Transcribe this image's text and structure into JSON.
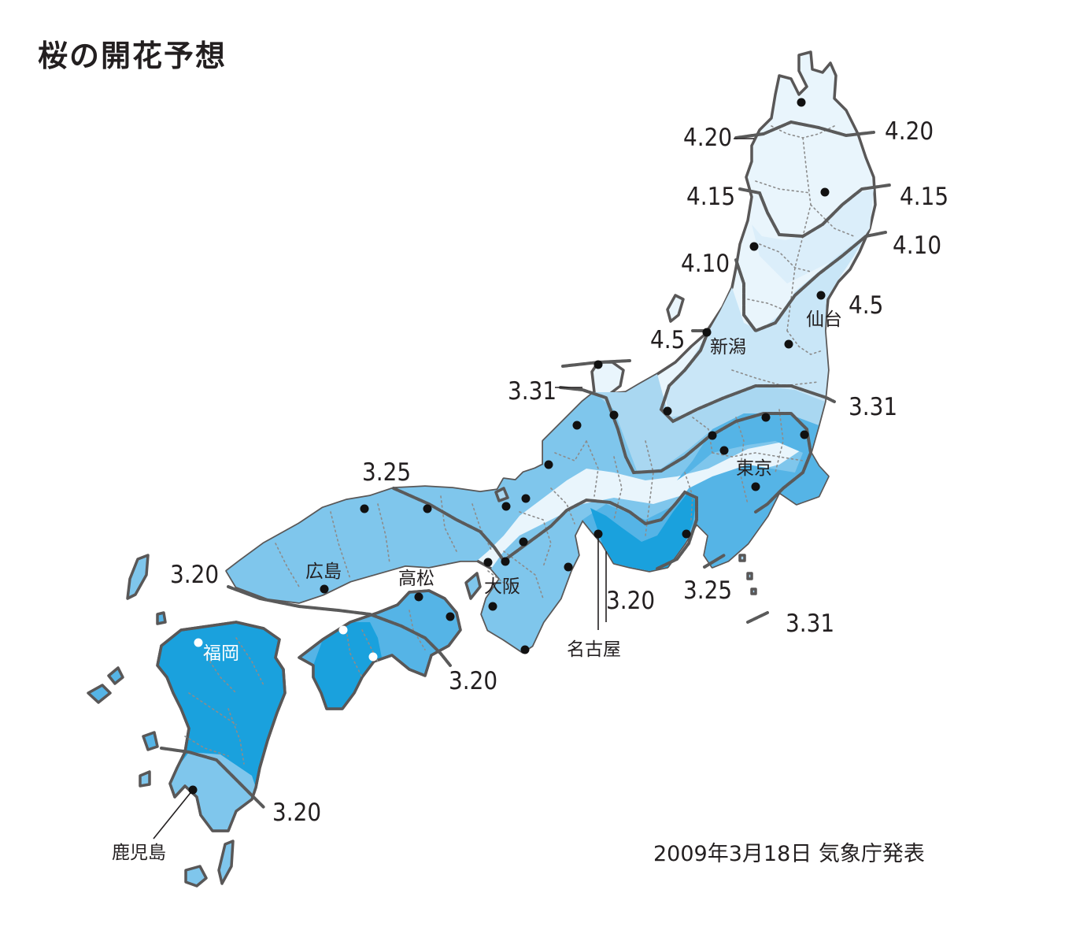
{
  "title": "桜の開花予想",
  "source": "2009年3月18日 気象庁発表",
  "colors": {
    "zone_4_20": "#e9f5fc",
    "zone_4_10": "#dbeefa",
    "zone_4_5": "#c9e6f7",
    "zone_3_31": "#a9d7f1",
    "zone_3_25": "#7fc6ec",
    "zone_3_20": "#55b4e6",
    "zone_early": "#1aa1dd",
    "border": "#595757"
  },
  "isochrones": [
    {
      "label": "4.20"
    },
    {
      "label": "4.20"
    },
    {
      "label": "4.15"
    },
    {
      "label": "4.15"
    },
    {
      "label": "4.10"
    },
    {
      "label": "4.10"
    },
    {
      "label": "4.5"
    },
    {
      "label": "4.5"
    },
    {
      "label": "3.31"
    },
    {
      "label": "3.31"
    },
    {
      "label": "3.31"
    },
    {
      "label": "3.25"
    },
    {
      "label": "3.25"
    },
    {
      "label": "3.20"
    },
    {
      "label": "3.20"
    },
    {
      "label": "3.20"
    },
    {
      "label": "3.20"
    }
  ],
  "cities": {
    "sendai": "仙台",
    "niigata": "新潟",
    "tokyo": "東京",
    "nagoya": "名古屋",
    "osaka": "大阪",
    "takamatsu": "高松",
    "hiroshima": "広島",
    "fukuoka": "福岡",
    "kagoshima": "鹿児島"
  }
}
